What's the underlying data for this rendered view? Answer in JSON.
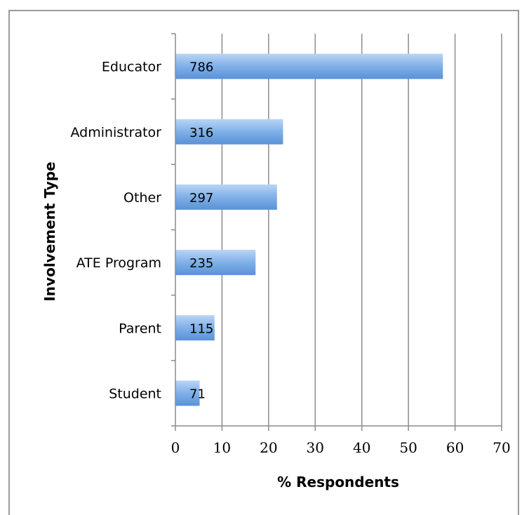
{
  "chart_data": {
    "type": "bar",
    "orientation": "horizontal",
    "title": "",
    "xlabel": "% Respondents",
    "ylabel": "Involvement Type",
    "categories": [
      "Educator",
      "Administrator",
      "Other",
      "ATE Program",
      "Parent",
      "Student"
    ],
    "values": [
      57.4,
      23.1,
      21.8,
      17.2,
      8.4,
      5.2
    ],
    "data_labels": [
      "786",
      "316",
      "297",
      "235",
      "115",
      "71"
    ],
    "xlim": [
      0,
      70
    ],
    "xticks": [
      "0",
      "10",
      "20",
      "30",
      "40",
      "50",
      "60",
      "70"
    ],
    "grid": true,
    "legend": "none",
    "bar_color": "#6aa2e0"
  }
}
